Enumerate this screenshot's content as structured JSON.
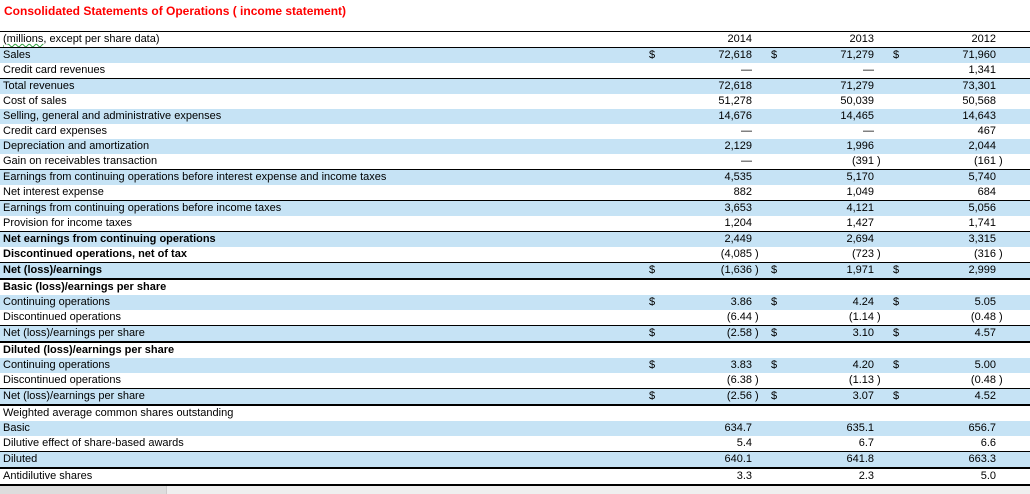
{
  "title": "Consolidated Statements of Operations ( income statement)",
  "colors": {
    "title_red": "#ff0000",
    "row_shade_blue": "#c6e3f5",
    "spellcheck_squiggle_green": "#2e9e3e"
  },
  "table": {
    "header": {
      "label_word": "(millions",
      "label_rest": ", except per share data)",
      "years": [
        "2014",
        "2013",
        "2012"
      ]
    },
    "rows": [
      {
        "label": "Sales",
        "shaded": true,
        "dollar": true,
        "values": [
          "72,618",
          "71,279",
          "71,960"
        ],
        "bt": "",
        "bb": "",
        "bold": false
      },
      {
        "label": "Credit card revenues",
        "shaded": false,
        "dollar": false,
        "values": [
          "—",
          "—",
          "1,341"
        ],
        "bt": "",
        "bb": "",
        "bold": false
      },
      {
        "label": "Total revenues",
        "shaded": true,
        "dollar": false,
        "values": [
          "72,618",
          "71,279",
          "73,301"
        ],
        "bt": "thin",
        "bb": "",
        "bold": false
      },
      {
        "label": "Cost of sales",
        "shaded": false,
        "dollar": false,
        "values": [
          "51,278",
          "50,039",
          "50,568"
        ],
        "bt": "",
        "bb": "",
        "bold": false
      },
      {
        "label": "Selling, general and administrative expenses",
        "shaded": true,
        "dollar": false,
        "values": [
          "14,676",
          "14,465",
          "14,643"
        ],
        "bt": "",
        "bb": "",
        "bold": false
      },
      {
        "label": "Credit card expenses",
        "shaded": false,
        "dollar": false,
        "values": [
          "—",
          "—",
          "467"
        ],
        "bt": "",
        "bb": "",
        "bold": false
      },
      {
        "label": "Depreciation and amortization",
        "shaded": true,
        "dollar": false,
        "values": [
          "2,129",
          "1,996",
          "2,044"
        ],
        "bt": "",
        "bb": "",
        "bold": false
      },
      {
        "label": "Gain on receivables transaction",
        "shaded": false,
        "dollar": false,
        "values": [
          "—",
          "(391)",
          "(161)"
        ],
        "bt": "",
        "bb": "",
        "bold": false
      },
      {
        "label": "Earnings from continuing operations before interest expense and income taxes",
        "shaded": true,
        "dollar": false,
        "values": [
          "4,535",
          "5,170",
          "5,740"
        ],
        "bt": "thin",
        "bb": "",
        "bold": false
      },
      {
        "label": "Net interest expense",
        "shaded": false,
        "dollar": false,
        "values": [
          "882",
          "1,049",
          "684"
        ],
        "bt": "",
        "bb": "",
        "bold": false
      },
      {
        "label": "Earnings from continuing operations before income taxes",
        "shaded": true,
        "dollar": false,
        "values": [
          "3,653",
          "4,121",
          "5,056"
        ],
        "bt": "thin",
        "bb": "",
        "bold": false
      },
      {
        "label": "Provision for income taxes",
        "shaded": false,
        "dollar": false,
        "values": [
          "1,204",
          "1,427",
          "1,741"
        ],
        "bt": "",
        "bb": "",
        "bold": false
      },
      {
        "label": "Net earnings from continuing operations",
        "shaded": true,
        "dollar": false,
        "values": [
          "2,449",
          "2,694",
          "3,315"
        ],
        "bt": "thin",
        "bb": "",
        "bold": true
      },
      {
        "label": "Discontinued operations, net of tax",
        "shaded": false,
        "dollar": false,
        "values": [
          "(4,085)",
          "(723)",
          "(316)"
        ],
        "bt": "",
        "bb": "",
        "bold": true
      },
      {
        "label": "Net (loss)/earnings",
        "shaded": true,
        "dollar": true,
        "values": [
          "(1,636)",
          "1,971",
          "2,999"
        ],
        "bt": "thin",
        "bb": "thick",
        "bold": true
      },
      {
        "label": "Basic (loss)/earnings per share",
        "shaded": false,
        "dollar": false,
        "values": [
          "",
          "",
          ""
        ],
        "bt": "",
        "bb": "",
        "bold": true
      },
      {
        "label": "Continuing operations",
        "shaded": true,
        "dollar": true,
        "values": [
          "3.86",
          "4.24",
          "5.05"
        ],
        "bt": "",
        "bb": "",
        "bold": false
      },
      {
        "label": "Discontinued operations",
        "shaded": false,
        "dollar": false,
        "values": [
          "(6.44)",
          "(1.14)",
          "(0.48)"
        ],
        "bt": "",
        "bb": "",
        "bold": false
      },
      {
        "label": "Net (loss)/earnings per share",
        "shaded": true,
        "dollar": true,
        "values": [
          "(2.58)",
          "3.10",
          "4.57"
        ],
        "bt": "thin",
        "bb": "thick",
        "bold": false
      },
      {
        "label": "Diluted (loss)/earnings per share",
        "shaded": false,
        "dollar": false,
        "values": [
          "",
          "",
          ""
        ],
        "bt": "",
        "bb": "",
        "bold": true
      },
      {
        "label": "Continuing operations",
        "shaded": true,
        "dollar": true,
        "values": [
          "3.83",
          "4.20",
          "5.00"
        ],
        "bt": "",
        "bb": "",
        "bold": false
      },
      {
        "label": "Discontinued operations",
        "shaded": false,
        "dollar": false,
        "values": [
          "(6.38)",
          "(1.13)",
          "(0.48)"
        ],
        "bt": "",
        "bb": "",
        "bold": false
      },
      {
        "label": "Net (loss)/earnings per share",
        "shaded": true,
        "dollar": true,
        "values": [
          "(2.56)",
          "3.07",
          "4.52"
        ],
        "bt": "thin",
        "bb": "thick",
        "bold": false
      },
      {
        "label": "Weighted average common shares outstanding",
        "shaded": false,
        "dollar": false,
        "values": [
          "",
          "",
          ""
        ],
        "bt": "",
        "bb": "",
        "bold": false
      },
      {
        "label": "Basic",
        "shaded": true,
        "dollar": false,
        "values": [
          "634.7",
          "635.1",
          "656.7"
        ],
        "bt": "",
        "bb": "",
        "bold": false
      },
      {
        "label": "Dilutive effect of share-based awards",
        "shaded": false,
        "dollar": false,
        "values": [
          "5.4",
          "6.7",
          "6.6"
        ],
        "bt": "",
        "bb": "",
        "bold": false
      },
      {
        "label": "Diluted",
        "shaded": true,
        "dollar": false,
        "values": [
          "640.1",
          "641.8",
          "663.3"
        ],
        "bt": "thin",
        "bb": "thick",
        "bold": false
      },
      {
        "label": "Antidilutive shares",
        "shaded": false,
        "dollar": false,
        "values": [
          "3.3",
          "2.3",
          "5.0"
        ],
        "bt": "",
        "bb": "medium",
        "bold": false
      }
    ],
    "dollar_symbol": "$",
    "close_paren": ")"
  }
}
